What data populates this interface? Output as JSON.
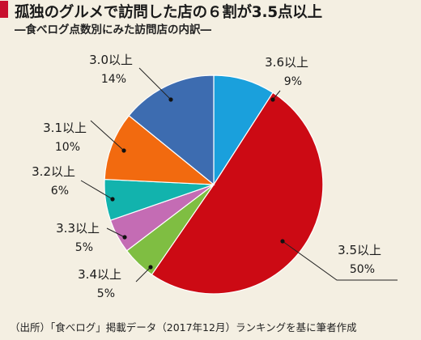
{
  "header": {
    "title": "孤独のグルメで訪問した店の６割が3.5点以上",
    "subtitle": "―食べログ点数別にみた訪問店の内訳―"
  },
  "footer": {
    "source": "（出所）「食べログ」掲載データ（2017年12月）ランキングを基に筆者作成"
  },
  "chart_data": {
    "type": "pie",
    "start": "12 o'clock, clockwise",
    "slices": [
      {
        "label": "3.6以上",
        "value": 9,
        "value_label": "9%",
        "color": "#1aa0dc"
      },
      {
        "label": "3.5以上",
        "value": 50,
        "value_label": "50%",
        "color": "#cc0a14"
      },
      {
        "label": "3.4以上",
        "value": 5,
        "value_label": "5%",
        "color": "#7fbe42"
      },
      {
        "label": "3.3以上",
        "value": 5,
        "value_label": "5%",
        "color": "#c46cb4"
      },
      {
        "label": "3.2以上",
        "value": 6,
        "value_label": "6%",
        "color": "#12b3ad"
      },
      {
        "label": "3.1以上",
        "value": 10,
        "value_label": "10%",
        "color": "#f26a0f"
      },
      {
        "label": "3.0以上",
        "value": 14,
        "value_label": "14%",
        "color": "#3d6cb0"
      }
    ]
  }
}
